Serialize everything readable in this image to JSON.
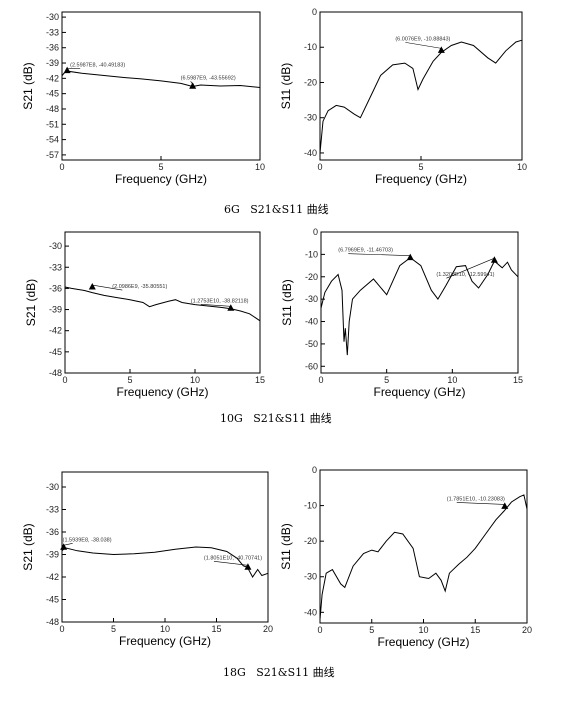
{
  "captions": [
    "6G   S21&S11 曲线",
    "10G   S21&S11 曲线",
    "18G   S21&S11 曲线"
  ],
  "chart_data": [
    {
      "type": "line",
      "xlabel": "Frequency (GHz)",
      "ylabel": "S21 (dB)",
      "xlim": [
        0,
        10
      ],
      "ylim": [
        -58,
        -29
      ],
      "xticks": [
        0,
        5,
        10
      ],
      "yticks": [
        -30,
        -33,
        -36,
        -39,
        -42,
        -45,
        -48,
        -51,
        -54,
        -57
      ],
      "x": [
        0,
        0.1,
        0.3,
        1,
        2,
        3,
        4,
        5,
        6,
        6.6,
        7,
        8,
        9,
        10
      ],
      "values": [
        -41.5,
        -41.0,
        -40.6,
        -41.0,
        -41.4,
        -41.8,
        -42.1,
        -42.5,
        -43.0,
        -43.6,
        -43.3,
        -43.5,
        -43.4,
        -43.8
      ],
      "annotations": [
        {
          "x": 0.2599,
          "y": -40.49183,
          "text": "(2.5987E8, -40.49183)"
        },
        {
          "x": 6.5987,
          "y": -43.55692,
          "text": "(6.5987E9, -43.55692)"
        }
      ]
    },
    {
      "type": "line",
      "xlabel": "Frequency (GHz)",
      "ylabel": "S11 (dB)",
      "xlim": [
        0,
        10
      ],
      "ylim": [
        -42,
        0
      ],
      "xticks": [
        0,
        5,
        10
      ],
      "yticks": [
        0,
        -10,
        -20,
        -30,
        -40
      ],
      "x": [
        0,
        0.15,
        0.4,
        0.8,
        1.2,
        1.7,
        2.0,
        2.5,
        3.0,
        3.6,
        4.2,
        4.6,
        4.85,
        5.1,
        5.6,
        6.0,
        6.5,
        7.0,
        7.6,
        8.3,
        8.7,
        9.2,
        9.7,
        10
      ],
      "values": [
        -40,
        -31,
        -28,
        -26.5,
        -27,
        -29,
        -30,
        -24,
        -18,
        -15,
        -14.5,
        -16,
        -22,
        -19,
        -14,
        -11.5,
        -9.5,
        -8.5,
        -9.5,
        -13,
        -14.5,
        -11,
        -8.5,
        -8
      ],
      "annotations": [
        {
          "x": 6.0076,
          "y": -10.88843,
          "text": "(6.0076E9, -10.88843)"
        }
      ]
    },
    {
      "type": "line",
      "xlabel": "Frequency (GHz)",
      "ylabel": "S21 (dB)",
      "xlim": [
        0,
        15
      ],
      "ylim": [
        -48,
        -28
      ],
      "xticks": [
        0,
        5,
        10,
        15
      ],
      "yticks": [
        -30,
        -33,
        -36,
        -39,
        -42,
        -45,
        -48
      ],
      "x": [
        0,
        0.5,
        1.5,
        2.1,
        3,
        4,
        5,
        6,
        6.5,
        7,
        8,
        8.5,
        9,
        10,
        11,
        12,
        12.75,
        13.5,
        14.2,
        15
      ],
      "values": [
        -35.8,
        -36.0,
        -36.3,
        -36.6,
        -37.0,
        -37.3,
        -37.6,
        -38.0,
        -38.6,
        -38.3,
        -37.8,
        -37.6,
        -38.0,
        -38.3,
        -38.5,
        -38.7,
        -38.9,
        -39.2,
        -39.6,
        -40.6
      ],
      "annotations": [
        {
          "x": 2.0986,
          "y": -35.80551,
          "text": "(2.0986E9, -35.80551)"
        },
        {
          "x": 12.7536,
          "y": -38.82118,
          "text": "(1.2753E10, -38.82118)"
        }
      ]
    },
    {
      "type": "line",
      "xlabel": "Frequency (GHz)",
      "ylabel": "S11 (dB)",
      "xlim": [
        0,
        15
      ],
      "ylim": [
        -63,
        0
      ],
      "xticks": [
        0,
        5,
        10,
        15
      ],
      "yticks": [
        0,
        -10,
        -20,
        -30,
        -40,
        -50,
        -60
      ],
      "x": [
        0,
        0.3,
        0.8,
        1.3,
        1.6,
        1.75,
        1.85,
        2.0,
        2.15,
        2.4,
        3.0,
        4.0,
        5.0,
        6.0,
        6.8,
        7.6,
        8.4,
        8.9,
        9.5,
        10.3,
        11.0,
        11.5,
        12.0,
        12.7,
        13.2,
        13.8,
        14.2,
        14.5,
        15
      ],
      "values": [
        -34,
        -27,
        -22,
        -19,
        -26,
        -49,
        -43,
        -55,
        -40,
        -30,
        -26,
        -21,
        -28,
        -15,
        -11.5,
        -15,
        -26,
        -30,
        -24,
        -15.5,
        -15,
        -22,
        -25,
        -19,
        -13,
        -16,
        -13.5,
        -17,
        -20
      ],
      "annotations": [
        {
          "x": 6.7969,
          "y": -11.46703,
          "text": "(6.7969E9, -11.46703)"
        },
        {
          "x": 13.2034,
          "y": -12.59941,
          "text": "(1.3203E10, -12.59941)"
        }
      ]
    },
    {
      "type": "line",
      "xlabel": "Frequency (GHz)",
      "ylabel": "S21 (dB)",
      "xlim": [
        0,
        20
      ],
      "ylim": [
        -48,
        -28
      ],
      "xticks": [
        0,
        5,
        10,
        15,
        20
      ],
      "yticks": [
        -30,
        -33,
        -36,
        -39,
        -42,
        -45,
        -48
      ],
      "x": [
        0,
        0.3,
        1.5,
        3,
        5,
        7,
        9,
        11,
        13,
        14.5,
        16,
        17,
        17.6,
        18,
        18.5,
        19,
        19.4,
        20
      ],
      "values": [
        -38.5,
        -38.1,
        -38.5,
        -38.8,
        -39.0,
        -38.9,
        -38.7,
        -38.3,
        -38.0,
        -38.1,
        -38.6,
        -39.5,
        -40.5,
        -40.7,
        -42.0,
        -41.0,
        -41.8,
        -41.5
      ],
      "annotations": [
        {
          "x": 0.1593,
          "y": -38.038,
          "text": "(1.5939E8, -38.038)"
        },
        {
          "x": 18.0516,
          "y": -40.70741,
          "text": "(1.8051E10, -40.70741)"
        }
      ]
    },
    {
      "type": "line",
      "xlabel": "Frequency (GHz)",
      "ylabel": "S11 (dB)",
      "xlim": [
        0,
        20
      ],
      "ylim": [
        -43,
        0
      ],
      "xticks": [
        0,
        5,
        10,
        15,
        20
      ],
      "yticks": [
        0,
        -10,
        -20,
        -30,
        -40
      ],
      "x": [
        0,
        0.2,
        0.6,
        1.2,
        2.0,
        2.4,
        3.2,
        4.2,
        5.0,
        5.6,
        6.4,
        7.2,
        8.0,
        9.0,
        9.6,
        10.5,
        11.2,
        11.7,
        12.1,
        12.5,
        13.4,
        14.2,
        15.0,
        16.0,
        17.0,
        17.8,
        18.5,
        19.3,
        19.7,
        20
      ],
      "values": [
        -42,
        -35,
        -29,
        -28,
        -32,
        -33,
        -27,
        -23.5,
        -22.5,
        -23,
        -20,
        -17.5,
        -18,
        -22,
        -30,
        -30.5,
        -29,
        -31,
        -34,
        -29,
        -26.5,
        -24.5,
        -22,
        -18,
        -14,
        -11.5,
        -9,
        -7.5,
        -7,
        -11
      ],
      "annotations": [
        {
          "x": 17.851,
          "y": -10.23083,
          "text": "(1.7851E10, -10.23083)"
        }
      ]
    }
  ]
}
